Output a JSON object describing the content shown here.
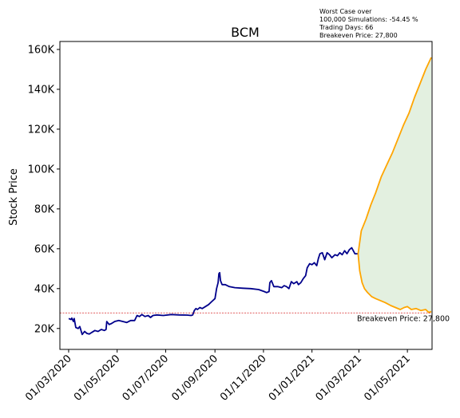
{
  "chart_data": {
    "type": "line",
    "title": "BCM",
    "xlabel": "",
    "ylabel": "Stock Price",
    "x_range": [
      "2020-02-19",
      "2021-06-01"
    ],
    "ylim": [
      9500,
      164000
    ],
    "grid": false,
    "x_tick_labels": [
      "01/03/2020",
      "01/05/2020",
      "01/07/2020",
      "01/09/2020",
      "01/11/2020",
      "01/01/2021",
      "01/03/2021",
      "01/05/2021"
    ],
    "x_tick_dates": [
      "2020-03-01",
      "2020-05-01",
      "2020-07-01",
      "2020-09-01",
      "2020-11-01",
      "2021-01-01",
      "2021-03-01",
      "2021-05-01"
    ],
    "y_tick_values": [
      20000,
      40000,
      60000,
      80000,
      100000,
      120000,
      140000,
      160000
    ],
    "y_tick_labels": [
      "20K",
      "40K",
      "60K",
      "80K",
      "100K",
      "120K",
      "140K",
      "160K"
    ],
    "annotation_lines": [
      "Worst Case over",
      "100,000 Simulations: -54.45 %",
      "Trading Days: 66",
      "Breakeven Price: 27,800"
    ],
    "breakeven": {
      "value": 27800,
      "label": "Breakeven Price: 27,800",
      "color": "#d62728"
    },
    "colors": {
      "history": "#00008b",
      "simulation": "#ffa500",
      "fill": "#e3f0e0"
    },
    "series": [
      {
        "role": "history",
        "points": [
          [
            "2020-03-01",
            25000
          ],
          [
            "2020-03-04",
            24500
          ],
          [
            "2020-03-05",
            25200
          ],
          [
            "2020-03-07",
            23500
          ],
          [
            "2020-03-08",
            25000
          ],
          [
            "2020-03-10",
            20500
          ],
          [
            "2020-03-13",
            20000
          ],
          [
            "2020-03-15",
            21000
          ],
          [
            "2020-03-18",
            17000
          ],
          [
            "2020-03-21",
            18500
          ],
          [
            "2020-03-24",
            17500
          ],
          [
            "2020-03-27",
            17200
          ],
          [
            "2020-03-30",
            18000
          ],
          [
            "2020-04-03",
            19000
          ],
          [
            "2020-04-07",
            18500
          ],
          [
            "2020-04-11",
            19500
          ],
          [
            "2020-04-15",
            19000
          ],
          [
            "2020-04-17",
            19500
          ],
          [
            "2020-04-18",
            23500
          ],
          [
            "2020-04-21",
            22000
          ],
          [
            "2020-04-24",
            22500
          ],
          [
            "2020-04-28",
            23500
          ],
          [
            "2020-05-03",
            24000
          ],
          [
            "2020-05-08",
            23500
          ],
          [
            "2020-05-13",
            23000
          ],
          [
            "2020-05-18",
            24000
          ],
          [
            "2020-05-23",
            24000
          ],
          [
            "2020-05-26",
            26500
          ],
          [
            "2020-05-29",
            26000
          ],
          [
            "2020-06-01",
            27000
          ],
          [
            "2020-06-05",
            26000
          ],
          [
            "2020-06-09",
            26500
          ],
          [
            "2020-06-12",
            25500
          ],
          [
            "2020-06-15",
            26500
          ],
          [
            "2020-06-20",
            26800
          ],
          [
            "2020-06-28",
            26500
          ],
          [
            "2020-07-08",
            27000
          ],
          [
            "2020-07-18",
            26800
          ],
          [
            "2020-07-28",
            26700
          ],
          [
            "2020-08-02",
            26500
          ],
          [
            "2020-08-04",
            26800
          ],
          [
            "2020-08-06",
            29000
          ],
          [
            "2020-08-08",
            30000
          ],
          [
            "2020-08-10",
            29500
          ],
          [
            "2020-08-13",
            30500
          ],
          [
            "2020-08-16",
            30000
          ],
          [
            "2020-08-20",
            31000
          ],
          [
            "2020-08-24",
            32000
          ],
          [
            "2020-08-28",
            33500
          ],
          [
            "2020-09-01",
            35000
          ],
          [
            "2020-09-03",
            40000
          ],
          [
            "2020-09-05",
            43000
          ],
          [
            "2020-09-06",
            47500
          ],
          [
            "2020-09-07",
            48000
          ],
          [
            "2020-09-08",
            44000
          ],
          [
            "2020-09-10",
            42000
          ],
          [
            "2020-09-14",
            42000
          ],
          [
            "2020-09-19",
            41000
          ],
          [
            "2020-09-26",
            40500
          ],
          [
            "2020-10-06",
            40200
          ],
          [
            "2020-10-16",
            40000
          ],
          [
            "2020-10-26",
            39500
          ],
          [
            "2020-11-02",
            38500
          ],
          [
            "2020-11-05",
            38000
          ],
          [
            "2020-11-08",
            38500
          ],
          [
            "2020-11-09",
            43000
          ],
          [
            "2020-11-11",
            44000
          ],
          [
            "2020-11-14",
            41000
          ],
          [
            "2020-11-19",
            41000
          ],
          [
            "2020-11-24",
            40500
          ],
          [
            "2020-11-27",
            41500
          ],
          [
            "2020-11-30",
            41000
          ],
          [
            "2020-12-03",
            40000
          ],
          [
            "2020-12-06",
            43500
          ],
          [
            "2020-12-09",
            42500
          ],
          [
            "2020-12-13",
            43500
          ],
          [
            "2020-12-15",
            42000
          ],
          [
            "2020-12-18",
            43000
          ],
          [
            "2020-12-21",
            45000
          ],
          [
            "2020-12-24",
            46500
          ],
          [
            "2020-12-26",
            50500
          ],
          [
            "2020-12-29",
            52500
          ],
          [
            "2021-01-01",
            52000
          ],
          [
            "2021-01-04",
            53000
          ],
          [
            "2021-01-07",
            51500
          ],
          [
            "2021-01-09",
            55000
          ],
          [
            "2021-01-11",
            57500
          ],
          [
            "2021-01-14",
            58000
          ],
          [
            "2021-01-17",
            54500
          ],
          [
            "2021-01-20",
            58000
          ],
          [
            "2021-01-23",
            57000
          ],
          [
            "2021-01-26",
            55500
          ],
          [
            "2021-01-30",
            57000
          ],
          [
            "2021-02-02",
            56500
          ],
          [
            "2021-02-05",
            58000
          ],
          [
            "2021-02-08",
            57000
          ],
          [
            "2021-02-11",
            59000
          ],
          [
            "2021-02-14",
            57500
          ],
          [
            "2021-02-17",
            59500
          ],
          [
            "2021-02-20",
            60500
          ],
          [
            "2021-02-24",
            57500
          ],
          [
            "2021-02-28",
            57500
          ]
        ]
      },
      {
        "role": "simulation-upper",
        "points": [
          [
            "2021-02-28",
            57500
          ],
          [
            "2021-03-04",
            69000
          ],
          [
            "2021-03-10",
            75000
          ],
          [
            "2021-03-16",
            82000
          ],
          [
            "2021-03-22",
            88000
          ],
          [
            "2021-03-29",
            96000
          ],
          [
            "2021-04-05",
            102000
          ],
          [
            "2021-04-12",
            108000
          ],
          [
            "2021-04-19",
            115000
          ],
          [
            "2021-04-26",
            122000
          ],
          [
            "2021-05-03",
            128000
          ],
          [
            "2021-05-10",
            136000
          ],
          [
            "2021-05-17",
            143000
          ],
          [
            "2021-05-24",
            150000
          ],
          [
            "2021-05-31",
            156000
          ]
        ]
      },
      {
        "role": "simulation-lower",
        "points": [
          [
            "2021-02-28",
            57500
          ],
          [
            "2021-03-02",
            49000
          ],
          [
            "2021-03-05",
            43000
          ],
          [
            "2021-03-08",
            40000
          ],
          [
            "2021-03-12",
            38000
          ],
          [
            "2021-03-17",
            36000
          ],
          [
            "2021-03-22",
            35000
          ],
          [
            "2021-03-28",
            34000
          ],
          [
            "2021-04-03",
            33000
          ],
          [
            "2021-04-10",
            31500
          ],
          [
            "2021-04-16",
            30500
          ],
          [
            "2021-04-22",
            29500
          ],
          [
            "2021-04-27",
            30500
          ],
          [
            "2021-05-01",
            31000
          ],
          [
            "2021-05-06",
            29500
          ],
          [
            "2021-05-12",
            30000
          ],
          [
            "2021-05-18",
            29000
          ],
          [
            "2021-05-24",
            29500
          ],
          [
            "2021-05-28",
            28000
          ],
          [
            "2021-05-31",
            28500
          ]
        ]
      }
    ]
  }
}
